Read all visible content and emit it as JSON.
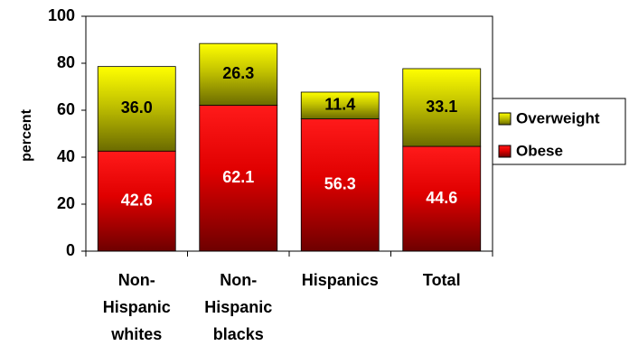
{
  "chart_data": {
    "type": "bar",
    "stacked": true,
    "categories": [
      [
        "Non-",
        "Hispanic",
        "whites"
      ],
      [
        "Non-",
        "Hispanic",
        "blacks"
      ],
      [
        "Hispanics"
      ],
      [
        "Total"
      ]
    ],
    "series": [
      {
        "name": "Obese",
        "values": [
          42.6,
          62.1,
          56.3,
          44.6
        ],
        "value_labels": [
          "42.6",
          "62.1",
          "56.3",
          "44.6"
        ],
        "color": "#e00000"
      },
      {
        "name": "Overweight",
        "values": [
          36.0,
          26.3,
          11.4,
          33.1
        ],
        "value_labels": [
          "36.0",
          "26.3",
          "11.4",
          "33.1"
        ],
        "color": "#b8b800"
      }
    ],
    "ylabel": "percent",
    "ylim": [
      0,
      100
    ],
    "yticks": [
      "0",
      "20",
      "40",
      "60",
      "80",
      "100"
    ],
    "legend": {
      "placement": "right",
      "order": [
        "Overweight",
        "Obese"
      ]
    }
  }
}
